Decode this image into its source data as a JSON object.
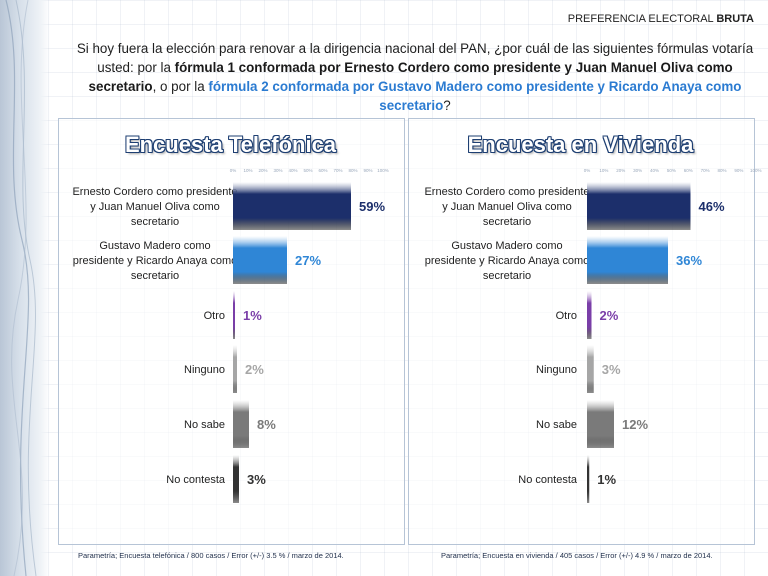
{
  "header": {
    "title_prefix": "PREFERENCIA ELECTORAL",
    "title_bold": "BRUTA"
  },
  "question": {
    "part1": "Si hoy fuera la elección para renovar a la dirigencia nacional del PAN, ¿por cuál de las siguientes fórmulas votaría usted: por la ",
    "bold1": "fórmula 1 conformada por Ernesto Cordero como presidente y Juan Manuel Oliva como secretario",
    "part2": ", o por la ",
    "blue1": "fórmula 2 conformada por Gustavo Madero como presidente y Ricardo Anaya como secretario",
    "part3": "?"
  },
  "colors": {
    "cordero": "#1c2f6b",
    "madero": "#2f86d6",
    "otro": "#7a3ea8",
    "ninguno": "#a6a6a6",
    "no_sabe": "#7a7a7a",
    "no_contesta": "#333333",
    "border": "#b6c4d6"
  },
  "chart_data": [
    {
      "type": "bar",
      "orientation": "horizontal",
      "title": "Encuesta Telefónica",
      "categories": [
        "Ernesto Cordero como presidente y Juan Manuel Oliva como secretario",
        "Gustavo Madero como presidente y Ricardo Anaya como secretario",
        "Otro",
        "Ninguno",
        "No sabe",
        "No contesta"
      ],
      "category_lines": [
        [
          "Ernesto Cordero como presidente",
          "y Juan Manuel Oliva como",
          "secretario"
        ],
        [
          "Gustavo Madero como",
          "presidente y Ricardo Anaya como",
          "secretario"
        ],
        [
          "Otro"
        ],
        [
          "Ninguno"
        ],
        [
          "No sabe"
        ],
        [
          "No contesta"
        ]
      ],
      "values": [
        59,
        27,
        1,
        2,
        8,
        3
      ],
      "value_labels": [
        "59%",
        "27%",
        "1%",
        "2%",
        "8%",
        "3%"
      ],
      "axis_ticks": [
        "0%",
        "10%",
        "20%",
        "30%",
        "40%",
        "50%",
        "60%",
        "70%",
        "80%",
        "90%",
        "100%"
      ],
      "xlim": [
        0,
        100
      ],
      "footnote": "Parametría; Encuesta telefónica / 800 casos / Error (+/-) 3.5 % / marzo de 2014."
    },
    {
      "type": "bar",
      "orientation": "horizontal",
      "title": "Encuesta en Vivienda",
      "categories": [
        "Ernesto Cordero como presidente y Juan Manuel Oliva como secretario",
        "Gustavo Madero como presidente y Ricardo Anaya como secretario",
        "Otro",
        "Ninguno",
        "No sabe",
        "No contesta"
      ],
      "category_lines": [
        [
          "Ernesto Cordero como presidente",
          "y Juan Manuel Oliva como",
          "secretario"
        ],
        [
          "Gustavo Madero como",
          "presidente y Ricardo Anaya como",
          "secretario"
        ],
        [
          "Otro"
        ],
        [
          "Ninguno"
        ],
        [
          "No sabe"
        ],
        [
          "No contesta"
        ]
      ],
      "values": [
        46,
        36,
        2,
        3,
        12,
        1
      ],
      "value_labels": [
        "46%",
        "36%",
        "2%",
        "3%",
        "12%",
        "1%"
      ],
      "axis_ticks": [
        "0%",
        "10%",
        "20%",
        "30%",
        "40%",
        "50%",
        "60%",
        "70%",
        "80%",
        "90%",
        "100%"
      ],
      "xlim": [
        0,
        100
      ],
      "footnote": "Parametría; Encuesta en vivienda / 405 casos / Error (+/-) 4.9 % / marzo de 2014."
    }
  ]
}
